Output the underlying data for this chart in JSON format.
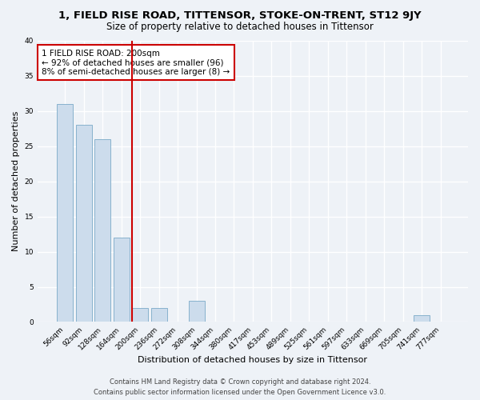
{
  "title": "1, FIELD RISE ROAD, TITTENSOR, STOKE-ON-TRENT, ST12 9JY",
  "subtitle": "Size of property relative to detached houses in Tittensor",
  "xlabel": "Distribution of detached houses by size in Tittensor",
  "ylabel": "Number of detached properties",
  "bar_labels": [
    "56sqm",
    "92sqm",
    "128sqm",
    "164sqm",
    "200sqm",
    "236sqm",
    "272sqm",
    "308sqm",
    "344sqm",
    "380sqm",
    "417sqm",
    "453sqm",
    "489sqm",
    "525sqm",
    "561sqm",
    "597sqm",
    "633sqm",
    "669sqm",
    "705sqm",
    "741sqm",
    "777sqm"
  ],
  "bar_values": [
    31,
    28,
    26,
    12,
    2,
    2,
    0,
    3,
    0,
    0,
    0,
    0,
    0,
    0,
    0,
    0,
    0,
    0,
    0,
    1,
    0
  ],
  "bar_color": "#ccdcec",
  "bar_edge_color": "#7aaac8",
  "reference_line_index": 4,
  "reference_line_color": "#cc0000",
  "annotation_text": "1 FIELD RISE ROAD: 200sqm\n← 92% of detached houses are smaller (96)\n8% of semi-detached houses are larger (8) →",
  "annotation_box_color": "#ffffff",
  "annotation_box_edge": "#cc0000",
  "ylim": [
    0,
    40
  ],
  "yticks": [
    0,
    5,
    10,
    15,
    20,
    25,
    30,
    35,
    40
  ],
  "footer_line1": "Contains HM Land Registry data © Crown copyright and database right 2024.",
  "footer_line2": "Contains public sector information licensed under the Open Government Licence v3.0.",
  "bg_color": "#eef2f7",
  "grid_color": "#ffffff",
  "title_fontsize": 9.5,
  "subtitle_fontsize": 8.5,
  "axis_label_fontsize": 8,
  "tick_fontsize": 6.5,
  "annotation_fontsize": 7.5,
  "footer_fontsize": 6
}
